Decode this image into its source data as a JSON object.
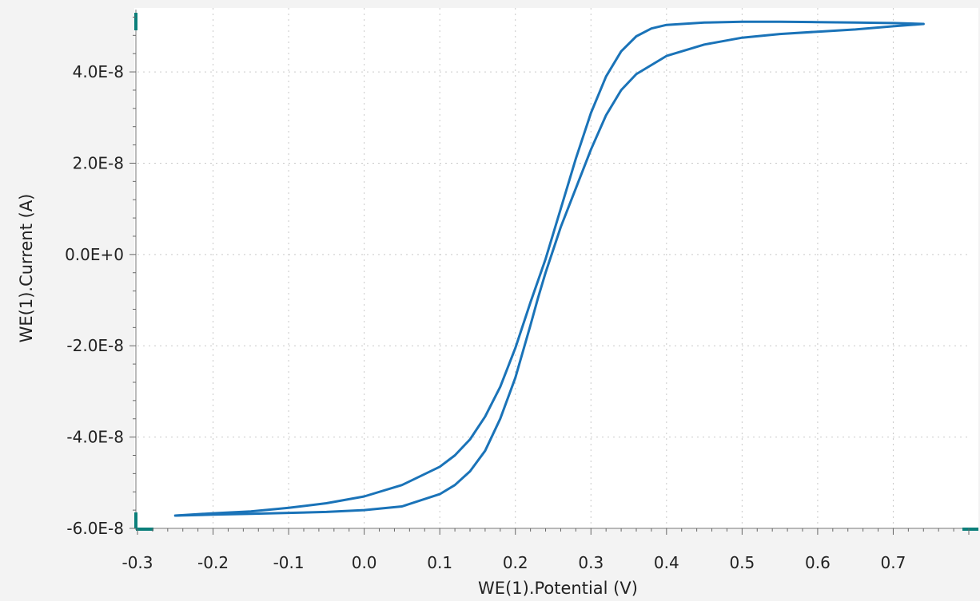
{
  "chart_data": {
    "type": "line",
    "xlabel": "WE(1).Potential (V)",
    "ylabel": "WE(1).Current (A)",
    "xlim": [
      -0.3,
      0.8
    ],
    "ylim": [
      -6e-08,
      5.4e-08
    ],
    "x_ticks": [
      {
        "value": -0.3,
        "label": "-0.3"
      },
      {
        "value": -0.2,
        "label": "-0.2"
      },
      {
        "value": -0.1,
        "label": "-0.1"
      },
      {
        "value": 0.0,
        "label": "0.0"
      },
      {
        "value": 0.1,
        "label": "0.1"
      },
      {
        "value": 0.2,
        "label": "0.2"
      },
      {
        "value": 0.3,
        "label": "0.3"
      },
      {
        "value": 0.4,
        "label": "0.4"
      },
      {
        "value": 0.5,
        "label": "0.5"
      },
      {
        "value": 0.6,
        "label": "0.6"
      },
      {
        "value": 0.7,
        "label": "0.7"
      }
    ],
    "y_ticks": [
      {
        "value": 4e-08,
        "label": "4.0E-8"
      },
      {
        "value": 2e-08,
        "label": "2.0E-8"
      },
      {
        "value": 0.0,
        "label": "0.0E+0"
      },
      {
        "value": -2e-08,
        "label": "-2.0E-8"
      },
      {
        "value": -4e-08,
        "label": "-4.0E-8"
      },
      {
        "value": -6e-08,
        "label": "-6.0E-8"
      }
    ],
    "grid": true,
    "line_color": "#1a73b8",
    "axis_color": "#0b7f7a",
    "series": [
      {
        "x": [
          -0.25,
          -0.2,
          -0.15,
          -0.1,
          -0.05,
          0.0,
          0.05,
          0.1,
          0.12,
          0.14,
          0.16,
          0.18,
          0.2,
          0.22,
          0.24,
          0.25,
          0.26,
          0.28,
          0.3,
          0.32,
          0.34,
          0.36,
          0.38,
          0.4,
          0.45,
          0.5,
          0.55,
          0.6,
          0.65,
          0.7,
          0.74
        ],
        "y": [
          -5.72e-08,
          -5.67e-08,
          -5.63e-08,
          -5.55e-08,
          -5.45e-08,
          -5.3e-08,
          -5.05e-08,
          -4.65e-08,
          -4.4e-08,
          -4.05e-08,
          -3.55e-08,
          -2.9e-08,
          -2.05e-08,
          -1.05e-08,
          -1e-09,
          4.5e-09,
          1e-08,
          2.1e-08,
          3.1e-08,
          3.9e-08,
          4.45e-08,
          4.78e-08,
          4.95e-08,
          5.03e-08,
          5.08e-08,
          5.1e-08,
          5.1e-08,
          5.09e-08,
          5.08e-08,
          5.07e-08,
          5.05e-08
        ]
      },
      {
        "x": [
          0.74,
          0.7,
          0.65,
          0.6,
          0.55,
          0.5,
          0.45,
          0.4,
          0.36,
          0.34,
          0.32,
          0.3,
          0.28,
          0.26,
          0.25,
          0.24,
          0.23,
          0.22,
          0.2,
          0.18,
          0.16,
          0.14,
          0.12,
          0.1,
          0.05,
          0.0,
          -0.05,
          -0.1,
          -0.15,
          -0.2,
          -0.25
        ],
        "y": [
          5.05e-08,
          5e-08,
          4.93e-08,
          4.88e-08,
          4.83e-08,
          4.75e-08,
          4.6e-08,
          4.35e-08,
          3.95e-08,
          3.6e-08,
          3.05e-08,
          2.3e-08,
          1.45e-08,
          6e-09,
          1e-09,
          -4e-09,
          -9.5e-09,
          -1.55e-08,
          -2.7e-08,
          -3.6e-08,
          -4.3e-08,
          -4.75e-08,
          -5.05e-08,
          -5.25e-08,
          -5.52e-08,
          -5.6e-08,
          -5.64e-08,
          -5.66e-08,
          -5.68e-08,
          -5.7e-08,
          -5.72e-08
        ]
      }
    ]
  }
}
